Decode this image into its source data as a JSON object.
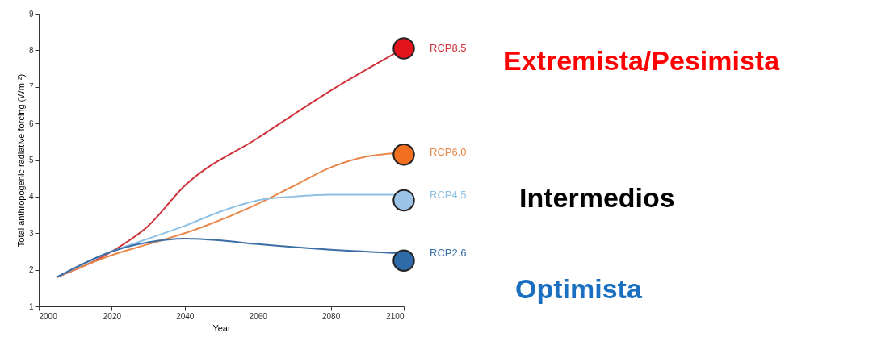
{
  "chart_data": {
    "type": "line",
    "xlabel": "Year",
    "ylabel": "Total anthropogenic radiative forcing (Wm⁻²)",
    "xlim": [
      2000,
      2100
    ],
    "ylim": [
      1,
      9
    ],
    "xticks": [
      2000,
      2020,
      2040,
      2060,
      2080,
      2100
    ],
    "yticks": [
      1,
      2,
      3,
      4,
      5,
      6,
      7,
      8,
      9
    ],
    "grid": false,
    "marker": "none",
    "line_style": "solid",
    "series": [
      {
        "name": "RCP8.5",
        "color": "#d0333b",
        "x": [
          2005,
          2020,
          2030,
          2040,
          2060,
          2080,
          2100
        ],
        "values": [
          1.8,
          2.5,
          3.2,
          4.3,
          5.6,
          6.9,
          8.05
        ]
      },
      {
        "name": "RCP6.0",
        "color": "#e8874a",
        "x": [
          2005,
          2020,
          2030,
          2040,
          2060,
          2070,
          2080,
          2090,
          2100
        ],
        "values": [
          1.8,
          2.4,
          2.7,
          3.0,
          3.8,
          4.3,
          4.8,
          5.1,
          5.2
        ]
      },
      {
        "name": "RCP4.5",
        "color": "#8fc0e3",
        "x": [
          2005,
          2020,
          2030,
          2040,
          2050,
          2060,
          2070,
          2080,
          2100
        ],
        "values": [
          1.8,
          2.5,
          2.85,
          3.2,
          3.6,
          3.9,
          4.0,
          4.05,
          4.05
        ]
      },
      {
        "name": "RCP2.6",
        "color": "#3a6ea5",
        "x": [
          2005,
          2020,
          2030,
          2040,
          2050,
          2060,
          2080,
          2100
        ],
        "values": [
          1.8,
          2.5,
          2.75,
          2.85,
          2.8,
          2.7,
          2.55,
          2.45
        ]
      },
      {
        "type": "scatter",
        "marker": "circle",
        "x": [
          2100,
          2100,
          2100,
          2100
        ],
        "values": [
          8.05,
          5.15,
          3.9,
          2.25
        ],
        "colors": [
          "#e3131b",
          "#f07020",
          "#9cc3e6",
          "#2e6aa8"
        ]
      }
    ],
    "annotations": [
      "Extremista/Pesimista",
      "Intermedios",
      "Optimista"
    ]
  }
}
